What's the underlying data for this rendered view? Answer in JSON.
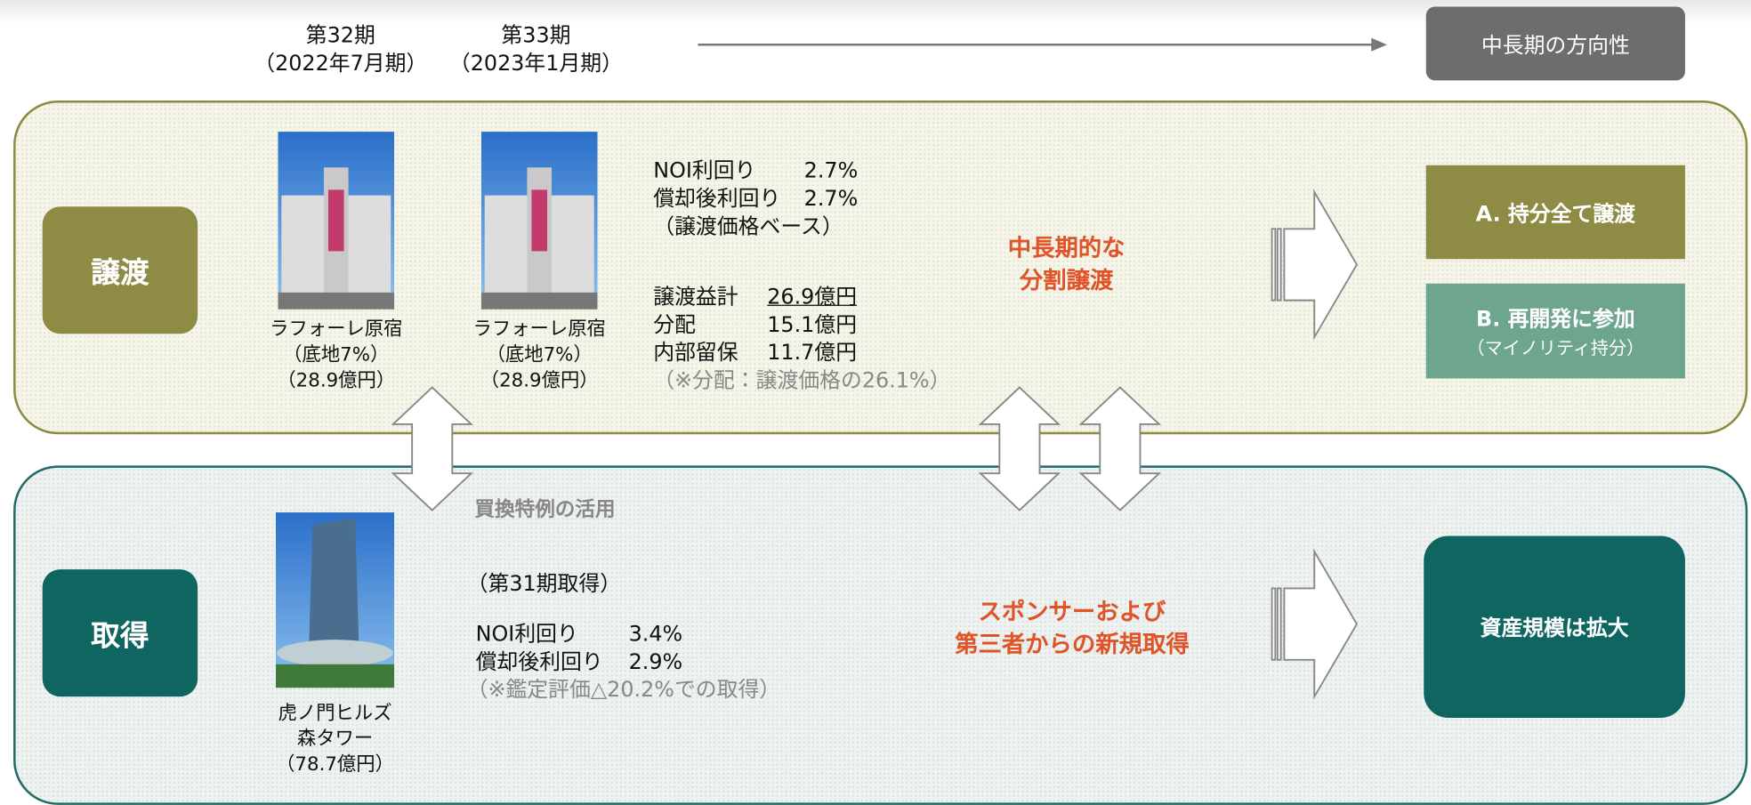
{
  "header": {
    "periods": [
      {
        "name": "第32期",
        "date": "（2022年7月期）"
      },
      {
        "name": "第33期",
        "date": "（2023年1月期）"
      }
    ],
    "direction": "中長期の方向性"
  },
  "transfer": {
    "label": "譲渡",
    "properties": [
      {
        "name": "ラフォーレ原宿",
        "note": "（底地7%）",
        "price": "（28.9億円）"
      },
      {
        "name": "ラフォーレ原宿",
        "note": "（底地7%）",
        "price": "（28.9億円）"
      }
    ],
    "yields": [
      {
        "label": "NOI利回り",
        "value": "2.7%"
      },
      {
        "label": "償却後利回り",
        "value": "2.7%"
      }
    ],
    "yield_basis": "（譲渡価格ベース）",
    "gains": [
      {
        "label": "譲渡益計",
        "value": "26.9億円"
      },
      {
        "label": "分配",
        "value": "15.1億円"
      },
      {
        "label": "内部留保",
        "value": "11.7億円"
      }
    ],
    "gain_note": "（※分配：譲渡価格の26.1%）",
    "plan": [
      "中長期的な",
      "分割譲渡"
    ],
    "options": [
      {
        "title": "A. 持分全て譲渡"
      },
      {
        "title": "B. 再開発に参加",
        "sub": "（マイノリティ持分）"
      }
    ]
  },
  "exchange_note": "買換特例の活用",
  "acquisition": {
    "label": "取得",
    "property": {
      "name": [
        "虎ノ門ヒルズ",
        "森タワー"
      ],
      "price": "（78.7億円）"
    },
    "period": "（第31期取得）",
    "yields": [
      {
        "label": "NOI利回り",
        "value": "3.4%"
      },
      {
        "label": "償却後利回り",
        "value": "2.9%"
      }
    ],
    "note": "（※鑑定評価△20.2%での取得）",
    "plan": [
      "スポンサーおよび",
      "第三者からの新規取得"
    ],
    "outcome": "資産規模は拡大"
  }
}
